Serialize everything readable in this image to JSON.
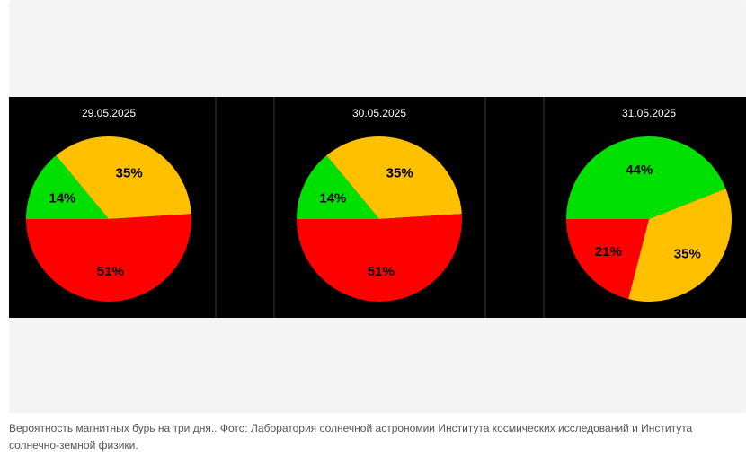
{
  "caption": "Вероятность магнитных бурь на три дня.. Фото: Лаборатория солнечной астрономии Института космических исследований и Института солнечно-земной физики.",
  "colors": {
    "background": "#000000",
    "red": "#ff0000",
    "yellow": "#ffc000",
    "green": "#00e000",
    "divider": "#3a3a3a",
    "text": "#ffffff"
  },
  "chart_data": [
    {
      "type": "pie",
      "title": "29.05.2025",
      "slices": [
        {
          "label": "14%",
          "value": 14,
          "color": "#00e000"
        },
        {
          "label": "35%",
          "value": 35,
          "color": "#ffc000"
        },
        {
          "label": "51%",
          "value": 51,
          "color": "#ff0000"
        }
      ]
    },
    {
      "type": "pie",
      "title": "30.05.2025",
      "slices": [
        {
          "label": "14%",
          "value": 14,
          "color": "#00e000"
        },
        {
          "label": "35%",
          "value": 35,
          "color": "#ffc000"
        },
        {
          "label": "51%",
          "value": 51,
          "color": "#ff0000"
        }
      ]
    },
    {
      "type": "pie",
      "title": "31.05.2025",
      "slices": [
        {
          "label": "44%",
          "value": 44,
          "color": "#00e000"
        },
        {
          "label": "35%",
          "value": 35,
          "color": "#ffc000"
        },
        {
          "label": "21%",
          "value": 21,
          "color": "#ff0000"
        }
      ]
    }
  ]
}
